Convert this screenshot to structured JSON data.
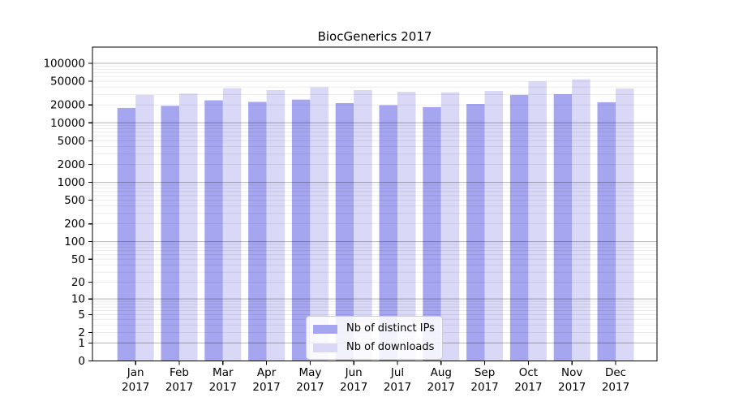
{
  "chart_data": {
    "type": "bar",
    "title": "BiocGenerics 2017",
    "categories": [
      "Jan",
      "Feb",
      "Mar",
      "Apr",
      "May",
      "Jun",
      "Jul",
      "Aug",
      "Sep",
      "Oct",
      "Nov",
      "Dec"
    ],
    "x_tick_second_line": "2017",
    "series": [
      {
        "name": "Nb of distinct IPs",
        "color": "#a5a5f0",
        "values": [
          17800,
          19300,
          23900,
          22500,
          24600,
          21500,
          19800,
          18400,
          20800,
          29500,
          30300,
          22200
        ]
      },
      {
        "name": "Nb of downloads",
        "color": "#d9d9f7",
        "values": [
          29400,
          31000,
          38300,
          35500,
          39700,
          35500,
          33300,
          32700,
          34400,
          49700,
          54000,
          37800
        ]
      }
    ],
    "yscale": "log10(value+1)",
    "ytick_labels": [
      "100000",
      "50000",
      "20000",
      "10000",
      "5000",
      "2000",
      "1000",
      "500",
      "200",
      "100",
      "50",
      "20",
      "10",
      "5",
      "2",
      "1",
      "0"
    ],
    "ylim": [
      0,
      169000
    ],
    "grid": "on",
    "legend": {
      "entries": [
        "Nb of distinct IPs",
        "Nb of downloads"
      ],
      "position": "lower center, inside plot"
    }
  }
}
